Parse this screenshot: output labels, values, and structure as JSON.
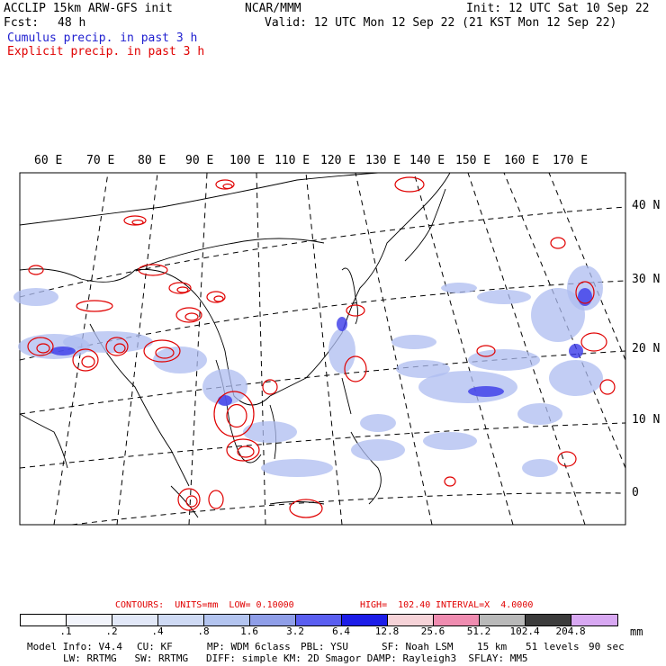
{
  "header": {
    "title": "ACCLIP 15km ARW-GFS init",
    "center": "NCAR/MMM",
    "init": "Init: 12 UTC Sat 10 Sep 22",
    "fcst_label": "Fcst:",
    "fcst_value": "48 h",
    "valid": "Valid: 12 UTC Mon 12 Sep 22 (21 KST Mon 12 Sep 22)",
    "cumulus": "Cumulus precip. in past 3 h",
    "explicit": "Explicit precip. in past 3 h"
  },
  "map": {
    "lon_labels": [
      "60 E",
      "70 E",
      "80 E",
      "90 E",
      "100 E",
      "110 E",
      "120 E",
      "130 E",
      "140 E",
      "150 E",
      "160 E",
      "170 E"
    ],
    "lat_labels": [
      "40 N",
      "30 N",
      "20 N",
      "10 N",
      "0"
    ]
  },
  "legend": {
    "contours": "CONTOURS:  UNITS=mm  LOW= 0.10000",
    "high": "HIGH=  102.40",
    "interval": "INTERVAL=X  4.0000",
    "units": "mm",
    "labels": [
      ".1",
      ".2",
      ".4",
      ".8",
      "1.6",
      "3.2",
      "6.4",
      "12.8",
      "25.6",
      "51.2",
      "102.4",
      "204.8"
    ],
    "colors": [
      "#ffffff",
      "#f2f4fb",
      "#e2e8f8",
      "#cfdaf4",
      "#b3c4ef",
      "#8f9ee8",
      "#5a5ef0",
      "#1d1de8",
      "#f6d3d8",
      "#ef8cb0",
      "#b9b9b9",
      "#3c3c3c",
      "#d8a8f2"
    ]
  },
  "footer": {
    "line1_a": "Model Info: V4.4",
    "line1_b": "CU: KF",
    "line1_c": "MP: WDM 6class",
    "line1_d": "PBL: YSU",
    "line1_e": "SF: Noah LSM",
    "line1_f": "15 km",
    "line1_g": "51 levels",
    "line1_h": "90 sec",
    "line2": "LW: RRTMG   SW: RRTMG   DIFF: simple KM: 2D Smagor DAMP: Rayleigh3  SFLAY: MM5"
  }
}
